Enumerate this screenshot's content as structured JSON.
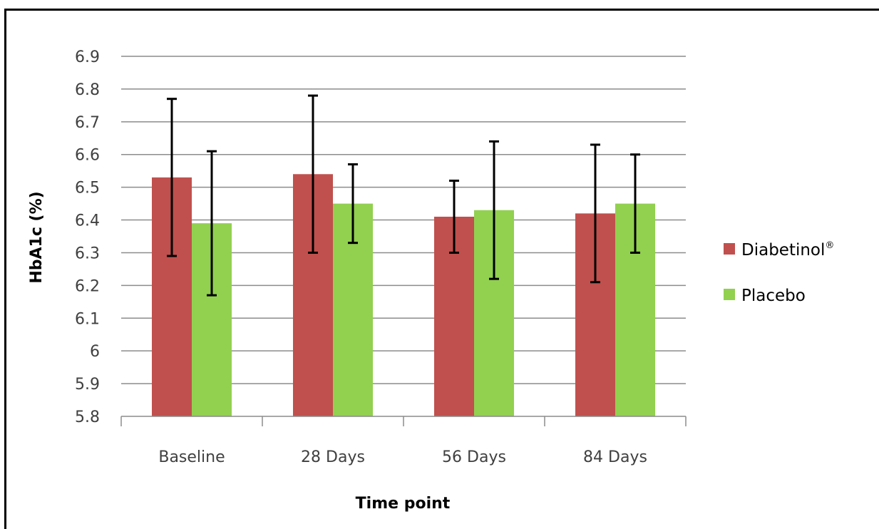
{
  "chart_data": {
    "type": "bar",
    "title": "",
    "xlabel": "Time point",
    "ylabel": "HbA1c (%)",
    "ylim": [
      5.8,
      6.9
    ],
    "yticks": [
      "6.9",
      "6.8",
      "6.7",
      "6.6",
      "6.5",
      "6.4",
      "6.3",
      "6.2",
      "6.1",
      "6",
      "5.9",
      "5.8"
    ],
    "categories": [
      "Baseline",
      "28 Days",
      "56 Days",
      "84 Days"
    ],
    "grid": true,
    "legend_position": "right",
    "series": [
      {
        "name": "Diabetinol",
        "name_mark": "®",
        "color": "#c0504d",
        "values": [
          6.53,
          6.54,
          6.41,
          6.42
        ],
        "error_low": [
          6.29,
          6.3,
          6.3,
          6.21
        ],
        "error_high": [
          6.77,
          6.78,
          6.52,
          6.63
        ]
      },
      {
        "name": "Placebo",
        "color": "#92d050",
        "values": [
          6.39,
          6.45,
          6.43,
          6.45
        ],
        "error_low": [
          6.17,
          6.33,
          6.22,
          6.3
        ],
        "error_high": [
          6.61,
          6.57,
          6.64,
          6.6
        ]
      }
    ]
  }
}
